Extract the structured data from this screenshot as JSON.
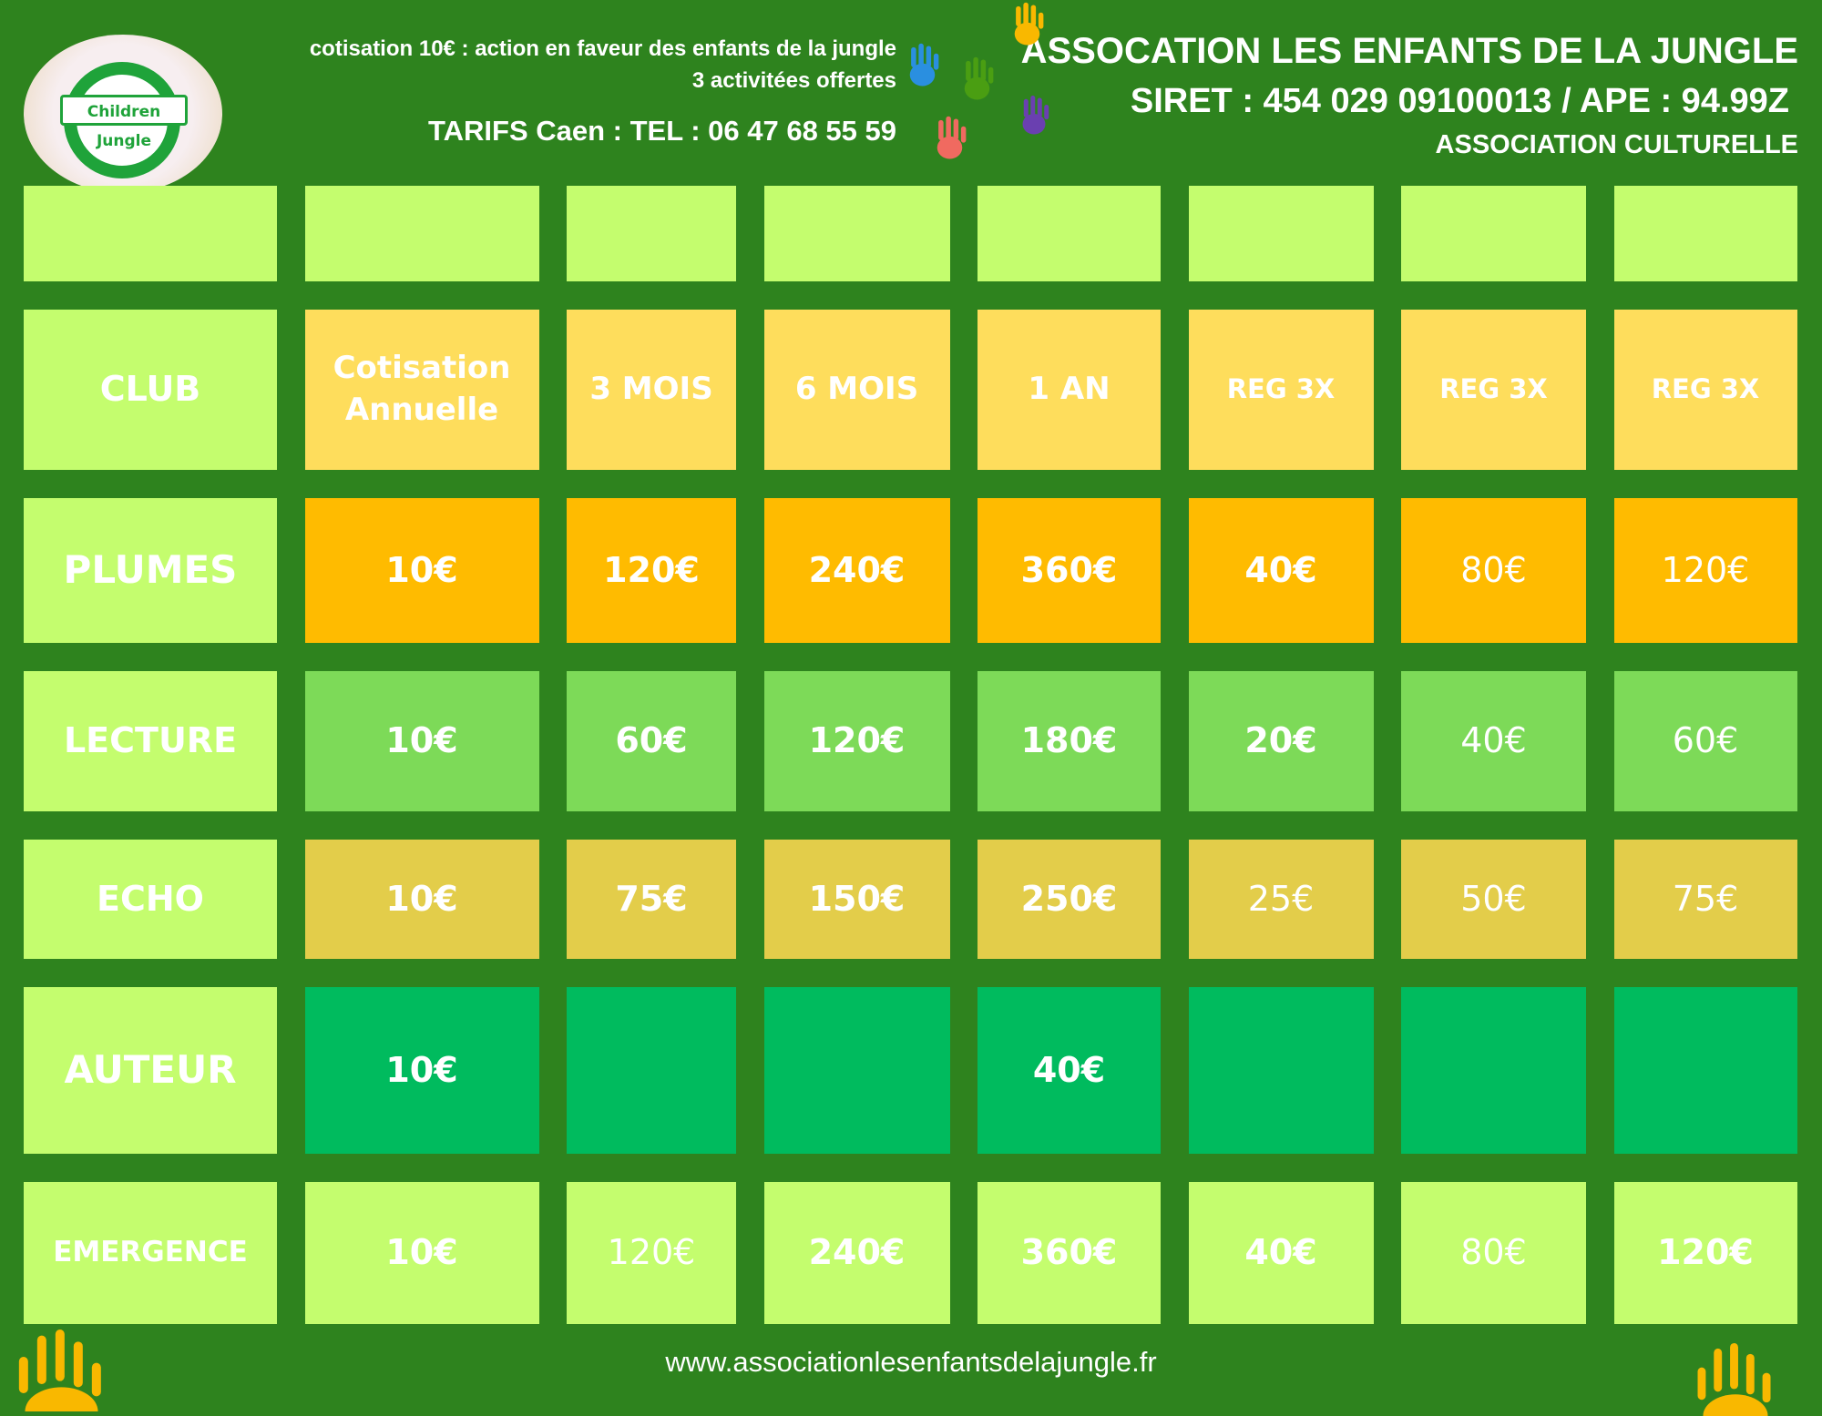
{
  "header": {
    "note_line1": "cotisation 10€ : action en faveur des enfants de la jungle",
    "note_line2": "3 activitées offertes",
    "tarifs": "TARIFS Caen : TEL : 06 47 68 55 59",
    "association_name": "ASSOCATION LES ENFANTS DE LA JUNGLE",
    "siret": "SIRET : 454 029 09100013 / APE : 94.99Z",
    "association_type": "ASSOCIATION CULTURELLE",
    "logo_text": "Children Jungle"
  },
  "table": {
    "columns": [
      "CLUB",
      "Cotisation Annuelle",
      "3 MOIS",
      "6 MOIS",
      "1 AN",
      "REG 3X",
      "REG 3X",
      "REG 3X"
    ],
    "rows": [
      {
        "label": "PLUMES",
        "values": [
          "10€",
          "120€",
          "240€",
          "360€",
          "40€",
          "80€",
          "120€"
        ]
      },
      {
        "label": "LECTURE",
        "values": [
          "10€",
          "60€",
          "120€",
          "180€",
          "20€",
          "40€",
          "60€"
        ]
      },
      {
        "label": "ECHO",
        "values": [
          "10€",
          "75€",
          "150€",
          "250€",
          "25€",
          "50€",
          "75€"
        ]
      },
      {
        "label": "AUTEUR",
        "values": [
          "10€",
          "",
          "",
          "40€",
          "",
          "",
          ""
        ]
      },
      {
        "label": "EMERGENCE",
        "values": [
          "10€",
          "120€",
          "240€",
          "360€",
          "40€",
          "80€",
          "120€"
        ]
      }
    ]
  },
  "colors": {
    "background": "#2e831e",
    "label_cells": "#c4fd6e",
    "header_cells": "#fedd5c",
    "plumes": "#ffbb00",
    "lecture": "#7dda58",
    "echo": "#e3cd4a",
    "auteur": "#00bb5e",
    "emergence": "#c4fd6e"
  },
  "footer": {
    "website": "www.associationlesenfantsdelajungle.fr"
  }
}
